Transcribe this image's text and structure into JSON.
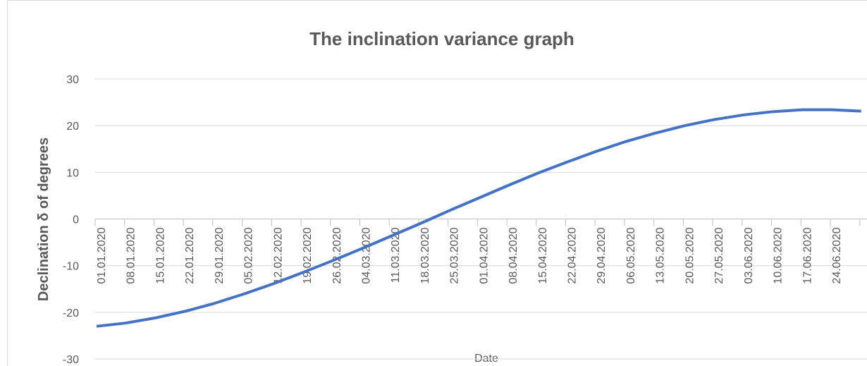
{
  "chart_data": {
    "type": "line",
    "title": "The inclination variance graph",
    "x_label": "Date",
    "y_label": "Declination δ  of degrees",
    "categories": [
      "01.01.2020",
      "08.01.2020",
      "15.01.2020",
      "22.01.2020",
      "29.01.2020",
      "05.02.2020",
      "12.02.2020",
      "19.02.2020",
      "26.02.2020",
      "04.03.2020",
      "11.03.2020",
      "18.03.2020",
      "25.03.2020",
      "01.04.2020",
      "08.04.2020",
      "15.04.2020",
      "22.04.2020",
      "29.04.2020",
      "06.05.2020",
      "13.05.2020",
      "20.05.2020",
      "27.05.2020",
      "03.06.2020",
      "10.06.2020",
      "17.06.2020",
      "24.06.2020",
      null
    ],
    "values": [
      -23.0,
      -22.3,
      -21.2,
      -19.8,
      -18.1,
      -16.1,
      -13.9,
      -11.5,
      -9.0,
      -6.4,
      -3.7,
      -1.0,
      1.8,
      4.5,
      7.2,
      9.8,
      12.2,
      14.5,
      16.6,
      18.4,
      20.0,
      21.3,
      22.3,
      23.0,
      23.4,
      23.4,
      23.1
    ],
    "color": "#4472c4",
    "ylim": [
      -30,
      30
    ],
    "yticks": [
      -30,
      -20,
      -10,
      0,
      10,
      20,
      30
    ],
    "grid": true
  }
}
